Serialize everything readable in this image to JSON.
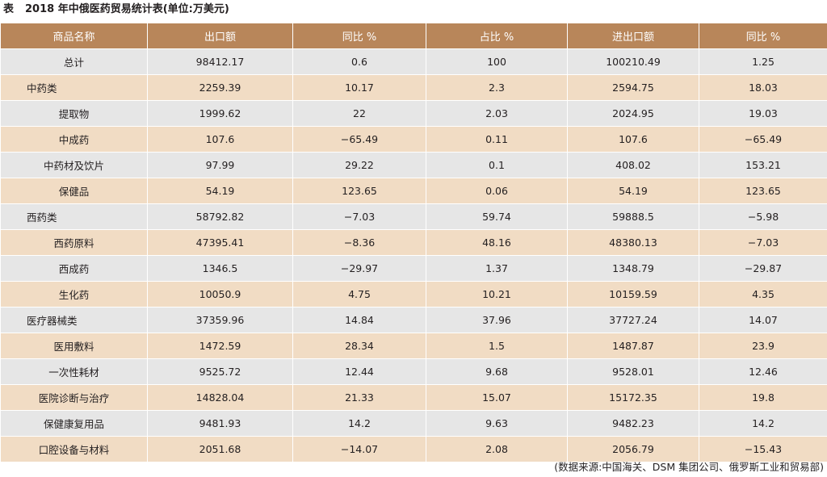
{
  "caption": {
    "label": "表",
    "title": "2018 年中俄医药贸易统计表(单位:万美元)"
  },
  "table": {
    "headers": [
      "商品名称",
      "出口额",
      "同比 %",
      "占比 %",
      "进出口额",
      "同比 %"
    ],
    "rows": [
      {
        "name": "总计",
        "align": "center",
        "values": [
          "98412.17",
          "0.6",
          "100",
          "100210.49",
          "1.25"
        ]
      },
      {
        "name": "中药类",
        "align": "left",
        "values": [
          "2259.39",
          "10.17",
          "2.3",
          "2594.75",
          "18.03"
        ]
      },
      {
        "name": "提取物",
        "align": "center",
        "values": [
          "1999.62",
          "22",
          "2.03",
          "2024.95",
          "19.03"
        ]
      },
      {
        "name": "中成药",
        "align": "center",
        "values": [
          "107.6",
          "−65.49",
          "0.11",
          "107.6",
          "−65.49"
        ]
      },
      {
        "name": "中药材及饮片",
        "align": "center",
        "values": [
          "97.99",
          "29.22",
          "0.1",
          "408.02",
          "153.21"
        ]
      },
      {
        "name": "保健品",
        "align": "center",
        "values": [
          "54.19",
          "123.65",
          "0.06",
          "54.19",
          "123.65"
        ]
      },
      {
        "name": "西药类",
        "align": "left",
        "values": [
          "58792.82",
          "−7.03",
          "59.74",
          "59888.5",
          "−5.98"
        ]
      },
      {
        "name": "西药原料",
        "align": "center",
        "values": [
          "47395.41",
          "−8.36",
          "48.16",
          "48380.13",
          "−7.03"
        ]
      },
      {
        "name": "西成药",
        "align": "center",
        "values": [
          "1346.5",
          "−29.97",
          "1.37",
          "1348.79",
          "−29.87"
        ]
      },
      {
        "name": "生化药",
        "align": "center",
        "values": [
          "10050.9",
          "4.75",
          "10.21",
          "10159.59",
          "4.35"
        ]
      },
      {
        "name": "医疗器械类",
        "align": "left",
        "values": [
          "37359.96",
          "14.84",
          "37.96",
          "37727.24",
          "14.07"
        ]
      },
      {
        "name": "医用敷料",
        "align": "center",
        "values": [
          "1472.59",
          "28.34",
          "1.5",
          "1487.87",
          "23.9"
        ]
      },
      {
        "name": "一次性耗材",
        "align": "center",
        "values": [
          "9525.72",
          "12.44",
          "9.68",
          "9528.01",
          "12.46"
        ]
      },
      {
        "name": "医院诊断与治疗",
        "align": "center",
        "values": [
          "14828.04",
          "21.33",
          "15.07",
          "15172.35",
          "19.8"
        ]
      },
      {
        "name": "保健康复用品",
        "align": "center",
        "values": [
          "9481.93",
          "14.2",
          "9.63",
          "9482.23",
          "14.2"
        ]
      },
      {
        "name": "口腔设备与材料",
        "align": "center",
        "values": [
          "2051.68",
          "−14.07",
          "2.08",
          "2056.79",
          "−15.43"
        ]
      }
    ]
  },
  "source": "(数据来源:中国海关、DSM 集团公司、俄罗斯工业和贸易部)",
  "colors": {
    "header_bg": "#b8865a",
    "row_gray": "#e6e6e6",
    "row_tan": "#f1dcc4"
  }
}
